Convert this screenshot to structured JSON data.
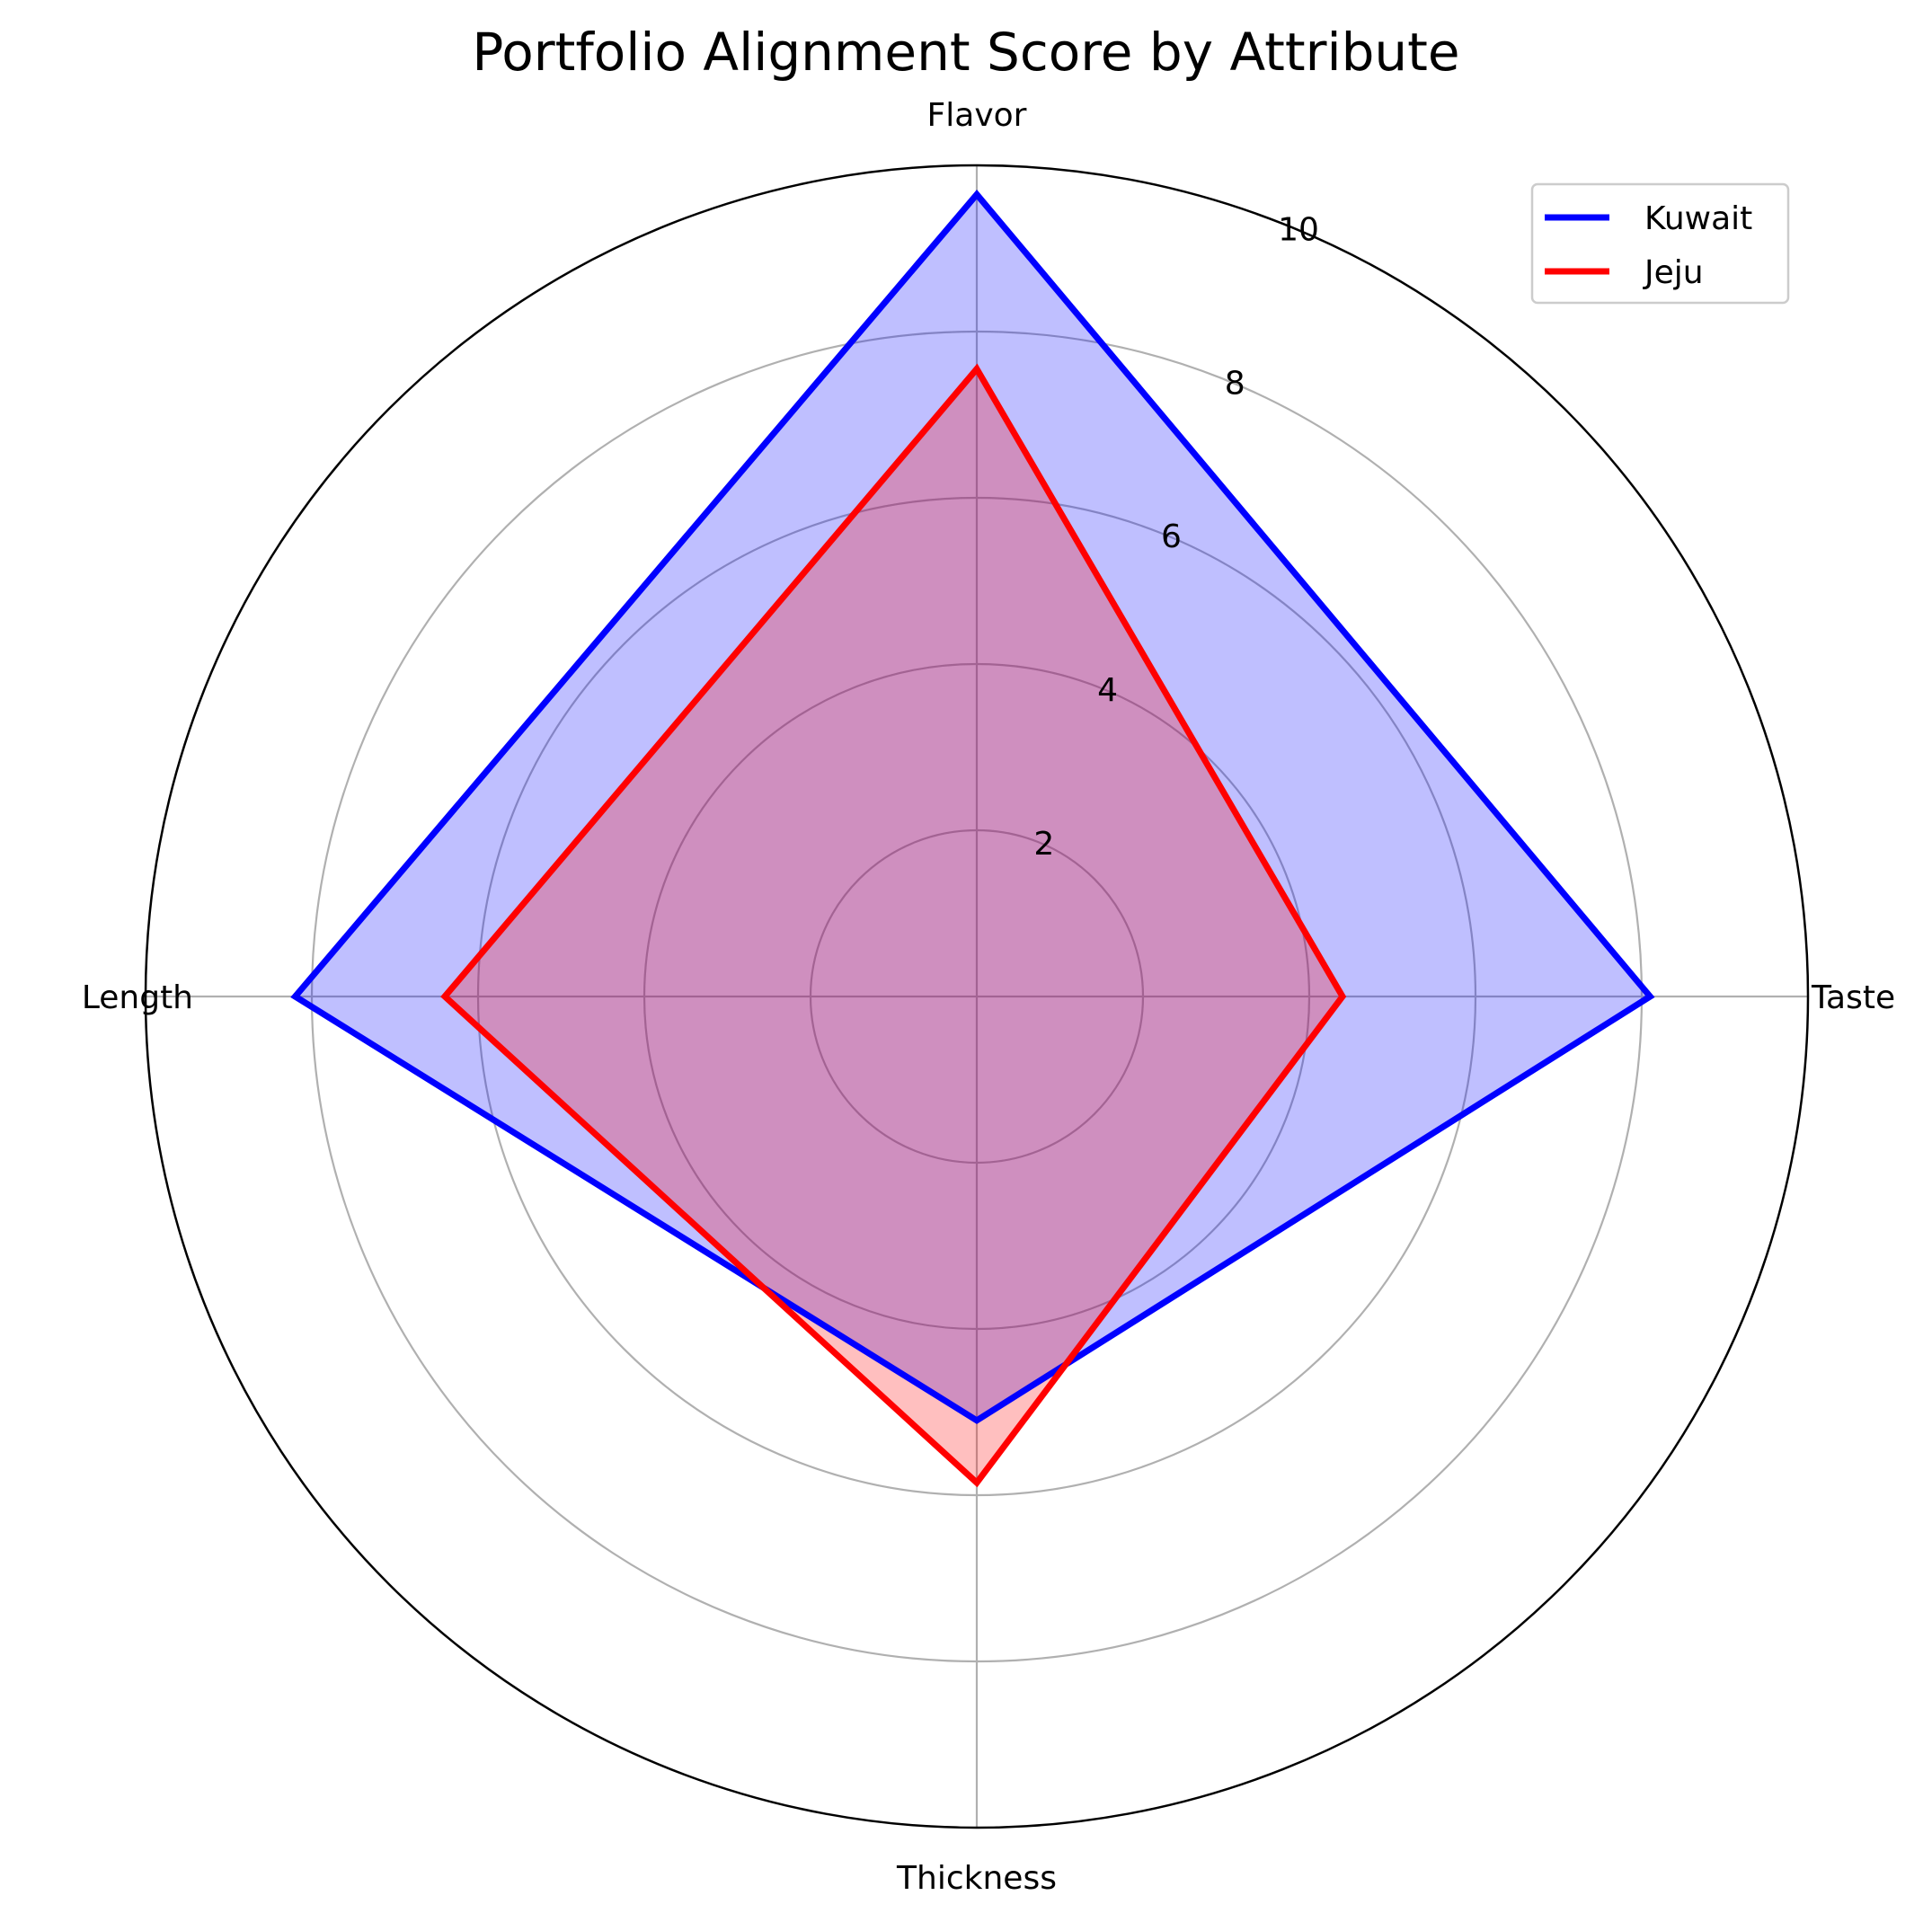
{
  "chart_data": {
    "type": "radar",
    "title": "Portfolio Alignment Score by Attribute",
    "axes": [
      "Flavor",
      "Taste",
      "Thickness",
      "Length"
    ],
    "rmax": 10,
    "r_ticks": [
      "2",
      "4",
      "6",
      "8",
      "10"
    ],
    "r_tick_values": [
      2,
      4,
      6,
      8,
      10
    ],
    "grid": true,
    "legend_position": "top-right",
    "series": [
      {
        "name": "Kuwait",
        "values": [
          9.65,
          8.1,
          5.1,
          8.2
        ],
        "color": "#0000ff",
        "fill": "#0000ff",
        "fill_opacity": 0.25
      },
      {
        "name": "Jeju",
        "values": [
          7.55,
          4.4,
          5.85,
          6.4
        ],
        "color": "#ff0000",
        "fill": "#ff0000",
        "fill_opacity": 0.25
      }
    ]
  }
}
